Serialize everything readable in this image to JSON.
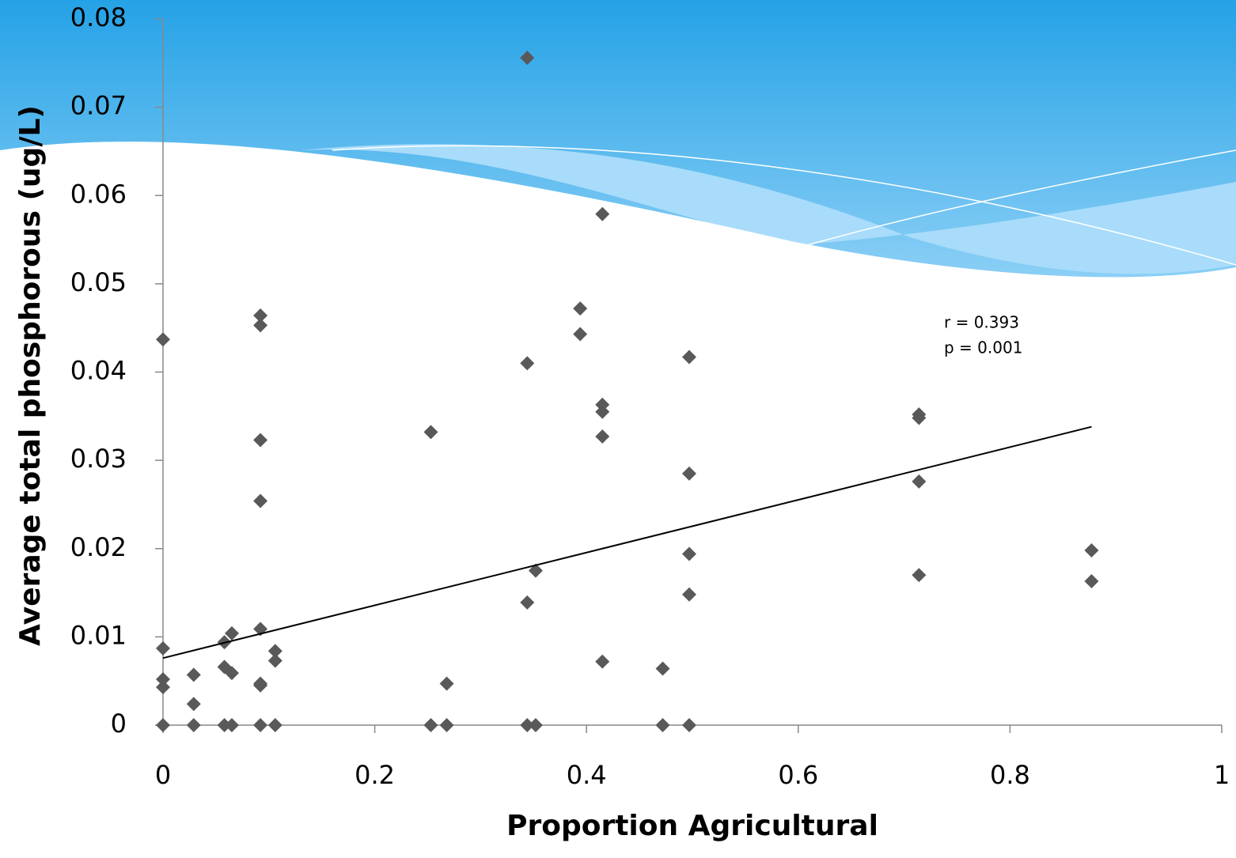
{
  "chart_data": {
    "type": "scatter",
    "xlabel": "Proportion Agricultural",
    "ylabel": "Average total phosphorous (ug/L)",
    "annotations": [
      "r = 0.393",
      "p = 0.001"
    ],
    "xlim": [
      0,
      1
    ],
    "xticks": [
      0,
      0.2,
      0.4,
      0.6,
      0.8,
      1
    ],
    "ylim": [
      0,
      0.08
    ],
    "yticks": [
      0,
      0.01,
      0.02,
      0.03,
      0.04,
      0.05,
      0.06,
      0.07,
      0.08
    ],
    "series": [
      {
        "color": "#595959",
        "x": [
          0.344,
          0.415,
          0,
          0.092,
          0.092,
          0.394,
          0.394,
          0.344,
          0.497,
          0.253,
          0.415,
          0.415,
          0.415,
          0.092,
          0.714,
          0.714,
          0.497,
          0.714,
          0.092,
          0.497,
          0.877,
          0.352,
          0.714,
          0.877,
          0.497,
          0.344,
          0.092,
          0.065,
          0.058,
          0,
          0.106,
          0.106,
          0.415,
          0.058,
          0.065,
          0.029,
          0.472,
          0,
          0,
          0.092,
          0.092,
          0.268,
          0.029,
          0,
          0.029,
          0.058,
          0.065,
          0.092,
          0.106,
          0.253,
          0.268,
          0.344,
          0.352,
          0.472,
          0.497
        ],
        "values": [
          0.0756,
          0.0579,
          0.0437,
          0.0464,
          0.0453,
          0.0472,
          0.0443,
          0.041,
          0.0417,
          0.0332,
          0.0363,
          0.0355,
          0.0327,
          0.0323,
          0.0352,
          0.0348,
          0.0285,
          0.0276,
          0.0254,
          0.0194,
          0.0198,
          0.0175,
          0.017,
          0.0163,
          0.0148,
          0.0139,
          0.0109,
          0.0104,
          0.0094,
          0.0087,
          0.0084,
          0.0073,
          0.0072,
          0.0066,
          0.0059,
          0.0057,
          0.0064,
          0.0052,
          0.0043,
          0.0047,
          0.0045,
          0.0047,
          0.0024,
          0,
          0,
          0,
          0,
          0,
          0,
          0,
          0,
          0,
          0,
          0,
          0
        ]
      }
    ],
    "trendline": {
      "color": "#000000",
      "x": [
        0,
        0.877
      ],
      "values": [
        0.0076,
        0.0338
      ]
    }
  }
}
